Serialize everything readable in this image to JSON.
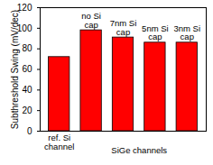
{
  "chart_data": {
    "type": "bar",
    "y_label": "Subthreshold Swing (mV/dec)",
    "categories": [
      "ref. Si channel",
      "no Si cap",
      "7nm Si cap",
      "5nm Si cap",
      "3nm Si cap"
    ],
    "values": [
      72,
      98,
      91,
      86,
      86
    ],
    "color": "#ff0000",
    "annotation": "SiGe channels",
    "ylim": [
      0,
      120
    ],
    "yticks": [
      0,
      20,
      40,
      60,
      80,
      100,
      120
    ],
    "grid": false
  }
}
